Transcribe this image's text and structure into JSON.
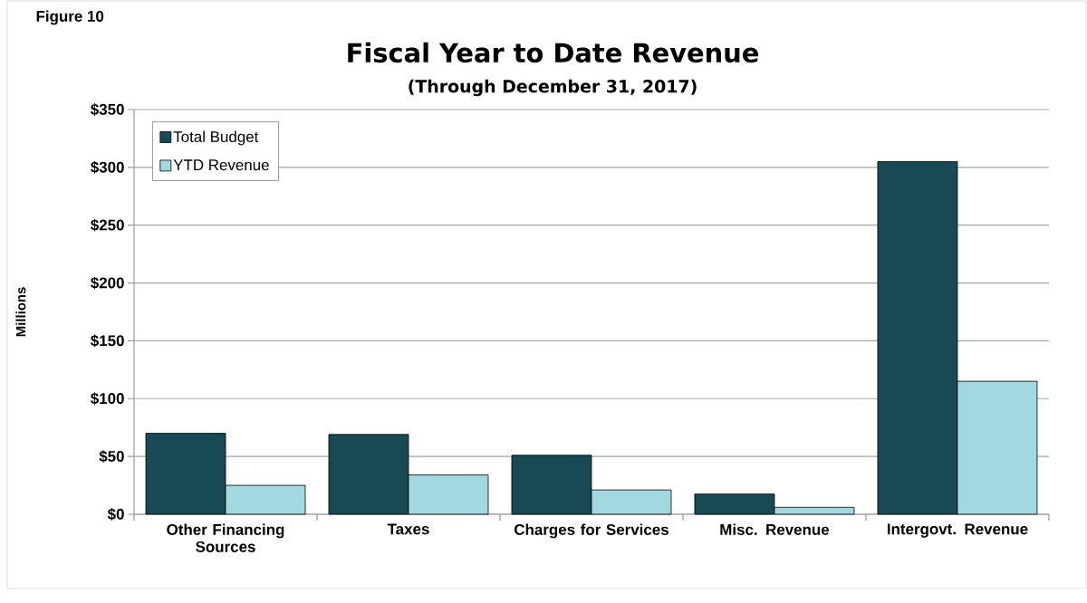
{
  "chart_data": {
    "type": "bar",
    "title": "Fiscal Year to Date Revenue",
    "subtitle": "(Through December 31, 2017)",
    "ylabel": "Millions",
    "annotations": [
      "Figure 10"
    ],
    "categories": [
      "Other Financing Sources",
      "Taxes",
      "Charges for Services",
      "Misc. Revenue",
      "Intergovt. Revenue"
    ],
    "series": [
      {
        "name": "Total Budget",
        "color": "#174a55",
        "values": [
          70,
          69,
          51,
          17.5,
          305
        ]
      },
      {
        "name": "YTD Revenue",
        "color": "#a2d9e1",
        "values": [
          25,
          34,
          21,
          6,
          115
        ]
      }
    ],
    "ylim": [
      0,
      350
    ],
    "yticks": [
      {
        "value": 0,
        "label": "$0"
      },
      {
        "value": 50,
        "label": "$50"
      },
      {
        "value": 100,
        "label": "$100"
      },
      {
        "value": 150,
        "label": "$150"
      },
      {
        "value": 200,
        "label": "$200"
      },
      {
        "value": 250,
        "label": "$250"
      },
      {
        "value": 300,
        "label": "$300"
      },
      {
        "value": 350,
        "label": "$350"
      }
    ],
    "grid": "y",
    "legend": "top left"
  }
}
